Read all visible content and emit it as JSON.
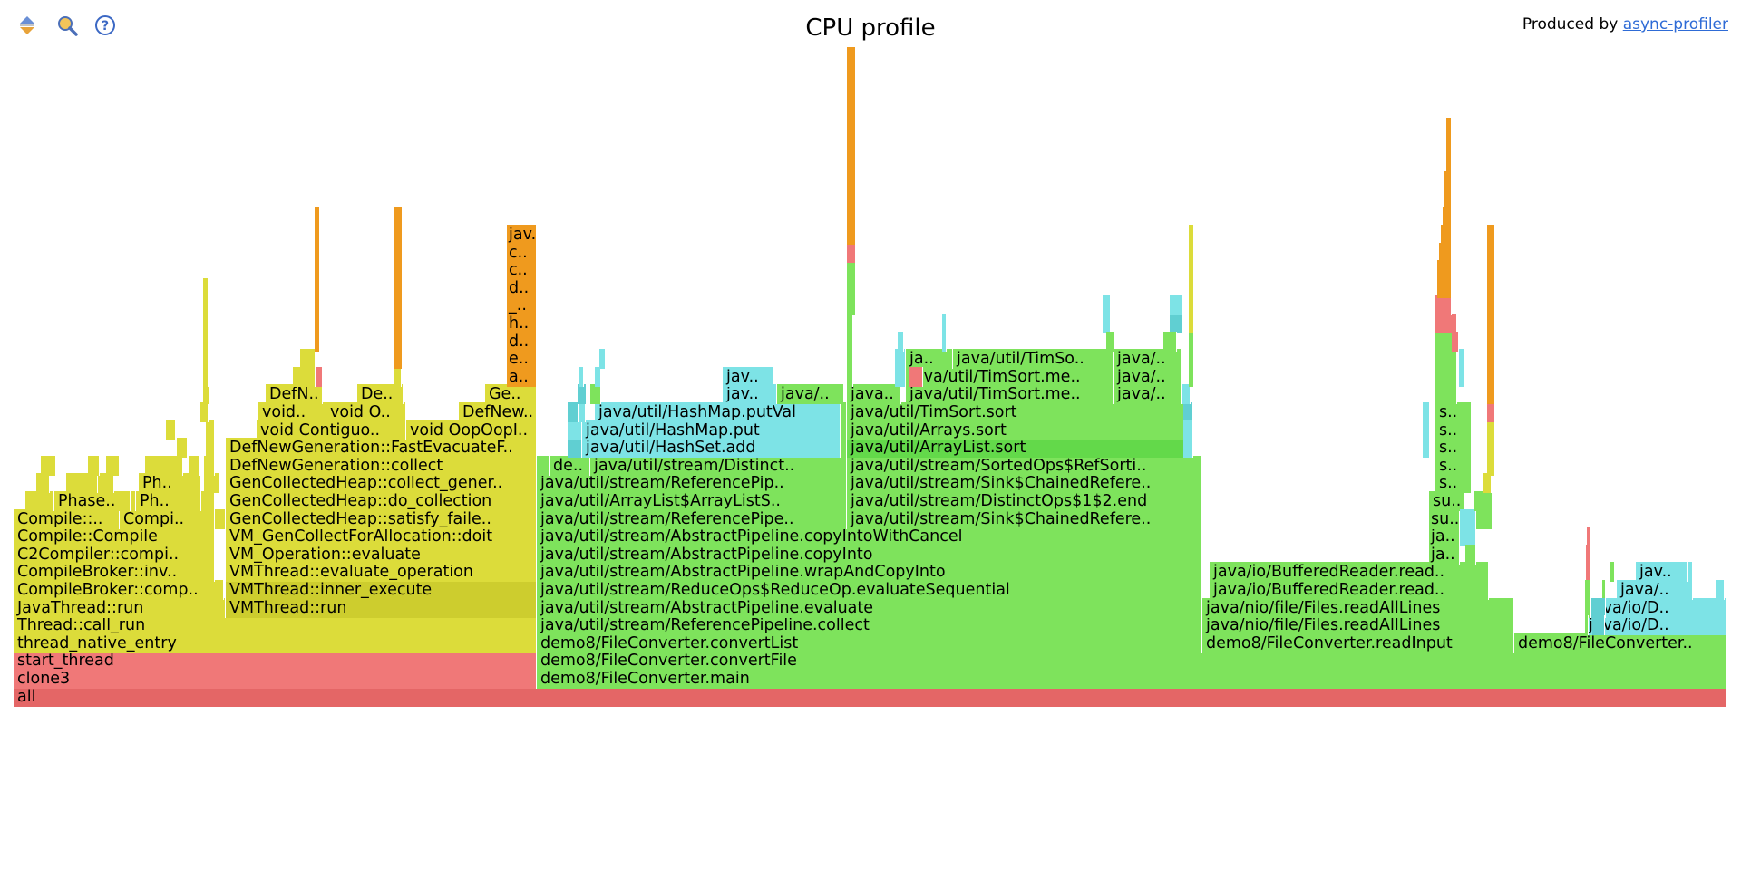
{
  "header": {
    "title": "CPU profile",
    "credit_prefix": "Produced by ",
    "credit_link": "async-profiler"
  },
  "toolbar": [
    {
      "name": "reverse-order-button",
      "icon": "sort-arrows-icon"
    },
    {
      "name": "search-button",
      "icon": "magnifier-icon"
    },
    {
      "name": "help-button",
      "icon": "question-mark-icon"
    }
  ],
  "colors": {
    "native": "#f07878",
    "cpp": "#dcdc3a",
    "cpp_alt": "#cdcd2e",
    "kernel": "#ef9a1e",
    "kernel_dark": "#e08a10",
    "java": "#7ee35c",
    "java_alt": "#63d94a",
    "inlined": "#7de3e6",
    "inlined_alt": "#60cfd2",
    "root": "#e46666",
    "link": "#2e6bd6"
  },
  "frames": [
    {
      "label": "all"
    },
    {
      "label": "clone3"
    },
    {
      "label": "demo8/FileConverter.main"
    },
    {
      "label": "start_thread"
    },
    {
      "label": "demo8/FileConverter.convertFile"
    },
    {
      "label": "thread_native_entry"
    },
    {
      "label": "demo8/FileConverter.convertList"
    },
    {
      "label": "demo8/FileConverter.readInput"
    },
    {
      "label": "demo8/FileConverter.."
    },
    {
      "label": "Thread::call_run"
    },
    {
      "label": "java/util/stream/ReferencePipeline.collect"
    },
    {
      "label": "java/nio/file/Files.readAllLines"
    },
    {
      "label": "java/io/D.."
    },
    {
      "label": "JavaThread::run"
    },
    {
      "label": "VMThread::run"
    },
    {
      "label": "java/util/stream/AbstractPipeline.evaluate"
    },
    {
      "label": "java/nio/file/Files.readAllLines"
    },
    {
      "label": "java/io/D.."
    },
    {
      "label": "CompileBroker::comp.."
    },
    {
      "label": "VMThread::inner_execute"
    },
    {
      "label": "java/util/stream/ReduceOps$ReduceOp.evaluateSequential"
    },
    {
      "label": "java/io/BufferedReader.read.."
    },
    {
      "label": "java/.."
    },
    {
      "label": "CompileBroker::inv.."
    },
    {
      "label": "VMThread::evaluate_operation"
    },
    {
      "label": "java/util/stream/AbstractPipeline.wrapAndCopyInto"
    },
    {
      "label": "java/io/BufferedReader.read.."
    },
    {
      "label": "jav.."
    },
    {
      "label": "C2Compiler::compi.."
    },
    {
      "label": "VM_Operation::evaluate"
    },
    {
      "label": "java/util/stream/AbstractPipeline.copyInto"
    },
    {
      "label": "ja.."
    },
    {
      "label": "Compile::Compile"
    },
    {
      "label": "VM_GenCollectForAllocation::doit"
    },
    {
      "label": "java/util/stream/AbstractPipeline.copyIntoWithCancel"
    },
    {
      "label": "ja.."
    },
    {
      "label": "Compile::.."
    },
    {
      "label": "Compi.."
    },
    {
      "label": "GenCollectedHeap::satisfy_faile.."
    },
    {
      "label": "java/util/stream/ReferencePipe.."
    },
    {
      "label": "java/util/stream/Sink$ChainedRefere.."
    },
    {
      "label": "su.."
    },
    {
      "label": "Phase.."
    },
    {
      "label": "Ph.."
    },
    {
      "label": "GenCollectedHeap::do_collection"
    },
    {
      "label": "java/util/ArrayList$ArrayListS.."
    },
    {
      "label": "java/util/stream/DistinctOps$1$2.end"
    },
    {
      "label": "su.."
    },
    {
      "label": "Ph.."
    },
    {
      "label": "GenCollectedHeap::collect_gener.."
    },
    {
      "label": "java/util/stream/ReferencePip.."
    },
    {
      "label": "java/util/stream/Sink$ChainedRefere.."
    },
    {
      "label": "s.."
    },
    {
      "label": "DefNewGeneration::collect"
    },
    {
      "label": "de.."
    },
    {
      "label": "java/util/stream/Distinct.."
    },
    {
      "label": "java/util/stream/SortedOps$RefSorti.."
    },
    {
      "label": "s.."
    },
    {
      "label": "DefNewGeneration::FastEvacuateF.."
    },
    {
      "label": "java/util/HashSet.add"
    },
    {
      "label": "java/util/ArrayList.sort"
    },
    {
      "label": "s.."
    },
    {
      "label": "void Contiguo.."
    },
    {
      "label": "void OopOopI.."
    },
    {
      "label": "java/util/HashMap.put"
    },
    {
      "label": "java/util/Arrays.sort"
    },
    {
      "label": "s.."
    },
    {
      "label": "void.."
    },
    {
      "label": "void O.."
    },
    {
      "label": "DefNew.."
    },
    {
      "label": "java/util/HashMap.putVal"
    },
    {
      "label": "java/util/TimSort.sort"
    },
    {
      "label": "s.."
    },
    {
      "label": "DefN.."
    },
    {
      "label": "De.."
    },
    {
      "label": "Ge.."
    },
    {
      "label": "jav.."
    },
    {
      "label": "java/.."
    },
    {
      "label": "java.."
    },
    {
      "label": "java/util/TimSort.me.."
    },
    {
      "label": "java/.."
    },
    {
      "label": "a.."
    },
    {
      "label": "jav.."
    },
    {
      "label": "java/util/TimSort.me.."
    },
    {
      "label": "java/.."
    },
    {
      "label": "e.."
    },
    {
      "label": "ja.."
    },
    {
      "label": "java/util/TimSo.."
    },
    {
      "label": "java/.."
    },
    {
      "label": "d.."
    },
    {
      "label": "h.."
    },
    {
      "label": "_.."
    },
    {
      "label": "d.."
    },
    {
      "label": "c.."
    },
    {
      "label": "c.."
    },
    {
      "label": "jav.."
    }
  ]
}
